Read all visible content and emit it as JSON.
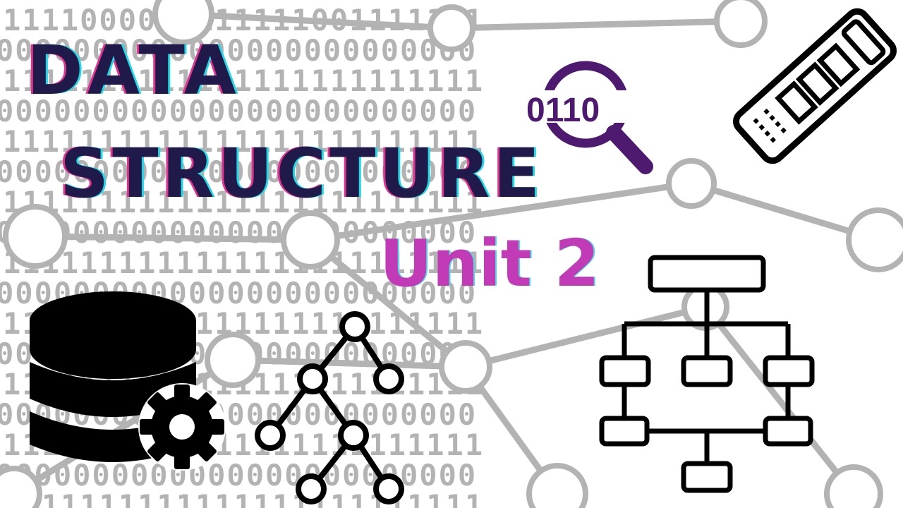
{
  "title": {
    "line1": "DATA",
    "line2": "STRUCTURE"
  },
  "subtitle": "Unit 2",
  "search_icon_label": "0110",
  "background": {
    "binary_rows": [
      "1111000011111111001111111",
      "0000000000000000000000000",
      "1111111111111111111111111",
      "0000000000000000000000000",
      "1111111111111111111111111",
      "0000000000000000000000000",
      "1111111111111111111111111",
      "0000000000000000000000000",
      "1111111111111111111111111",
      "0000000000000000000000000",
      "1111111111111111111111111",
      "0000000000000000000000000",
      "1111111111111111111111111",
      "0000000000000000000000000",
      "1111111111111111111111111",
      "0000000000000000000000000",
      "1111111111111111111111111"
    ]
  },
  "colors": {
    "title_fill": "#1f1a4a",
    "title_glow_cyan": "#22d7e6",
    "title_glow_pink": "#e0348f",
    "subtitle": "#c03bb5",
    "search_icon": "#4d1a70",
    "background_pattern": "#b3b3b3"
  },
  "icons": [
    "database-gear-icon",
    "binary-tree-icon",
    "search-binary-icon",
    "flowchart-icon",
    "memory-chip-icon"
  ]
}
